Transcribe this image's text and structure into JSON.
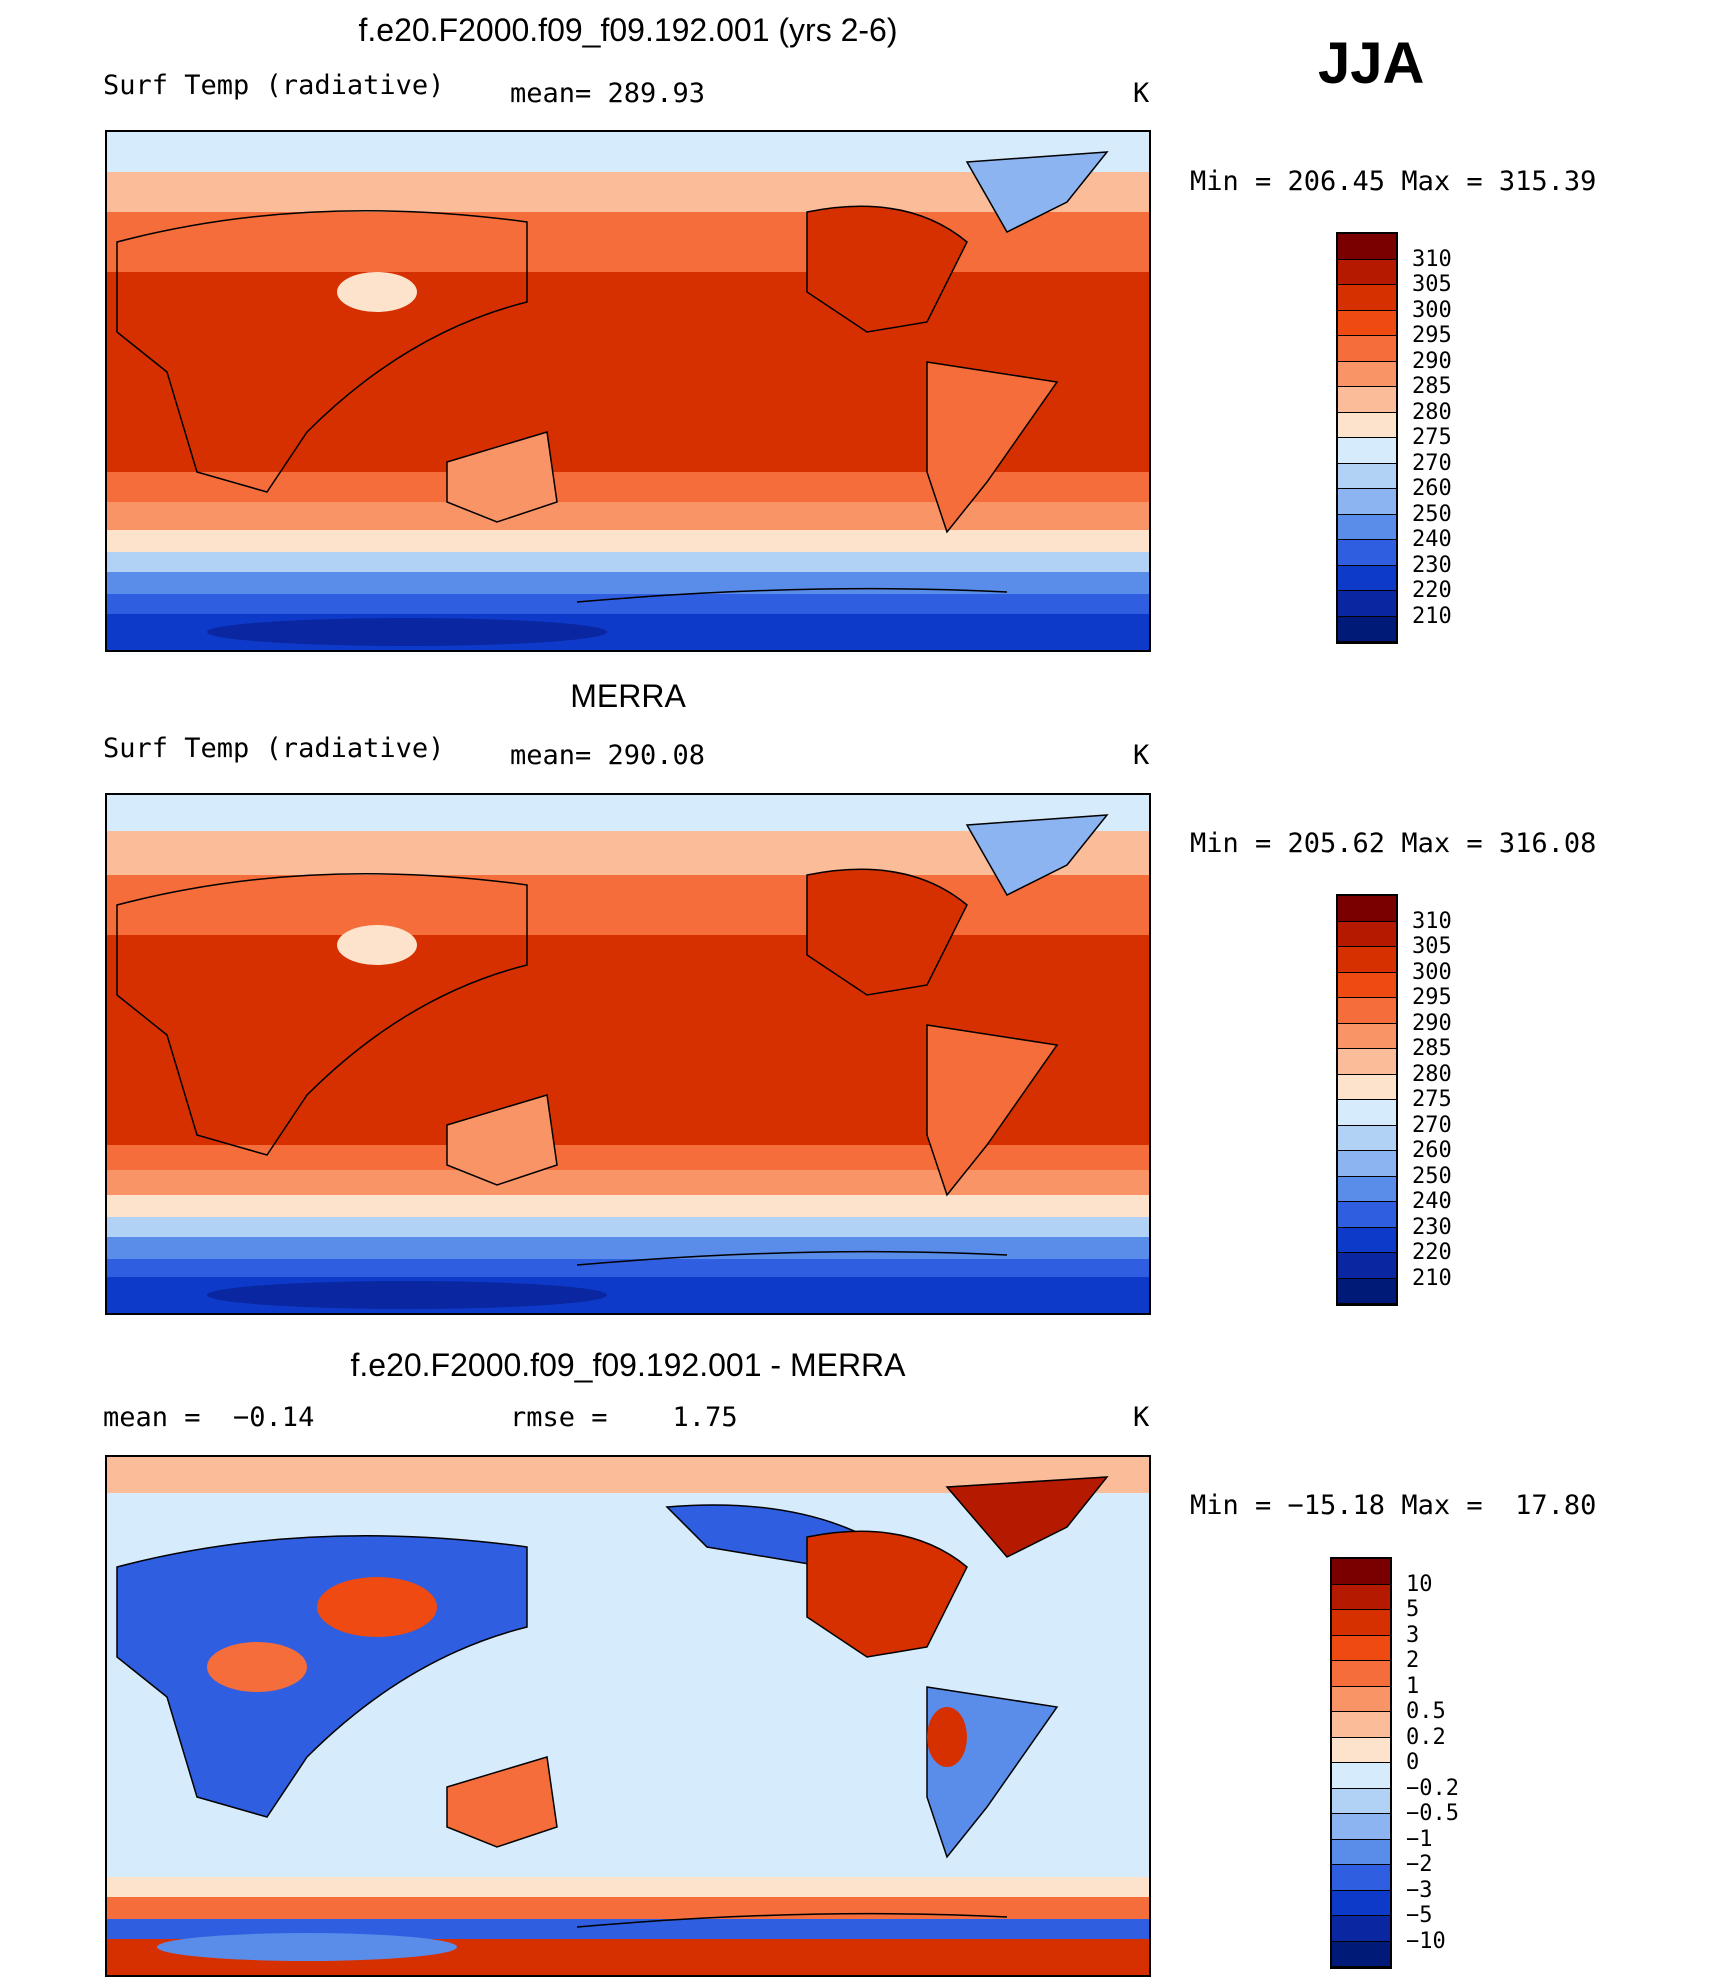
{
  "season": "JJA",
  "panels": [
    {
      "id": "model",
      "title": "f.e20.F2000.f09_f09.192.001 (yrs 2-6)",
      "left_label": "Surf Temp (radiative)",
      "mid_label": "mean= 289.93",
      "units": "K",
      "minmax": "Min = 206.45 Max = 315.39",
      "colorbar": {
        "labels": [
          "310",
          "305",
          "300",
          "295",
          "290",
          "285",
          "280",
          "275",
          "270",
          "260",
          "250",
          "240",
          "230",
          "220",
          "210"
        ],
        "colors": [
          "#7a0000",
          "#b51a00",
          "#d63000",
          "#ee4a12",
          "#f46d3b",
          "#f89466",
          "#fbbc99",
          "#fde2cc",
          "#d6ebfb",
          "#b2d2f5",
          "#8bb4f0",
          "#5a8cea",
          "#2f5fe0",
          "#0d3ac8",
          "#0a26a0",
          "#001a78"
        ]
      }
    },
    {
      "id": "obs",
      "title": "MERRA",
      "left_label": "Surf Temp (radiative)",
      "mid_label": "mean= 290.08",
      "units": "K",
      "minmax": "Min = 205.62 Max = 316.08",
      "colorbar": {
        "labels": [
          "310",
          "305",
          "300",
          "295",
          "290",
          "285",
          "280",
          "275",
          "270",
          "260",
          "250",
          "240",
          "230",
          "220",
          "210"
        ],
        "colors": [
          "#7a0000",
          "#b51a00",
          "#d63000",
          "#ee4a12",
          "#f46d3b",
          "#f89466",
          "#fbbc99",
          "#fde2cc",
          "#d6ebfb",
          "#b2d2f5",
          "#8bb4f0",
          "#5a8cea",
          "#2f5fe0",
          "#0d3ac8",
          "#0a26a0",
          "#001a78"
        ]
      }
    },
    {
      "id": "diff",
      "title": "f.e20.F2000.f09_f09.192.001 - MERRA",
      "left_label": "mean =  −0.14",
      "mid_label": "rmse =    1.75",
      "units": "K",
      "minmax": "Min = −15.18 Max =  17.80",
      "colorbar": {
        "labels": [
          "10",
          "5",
          "3",
          "2",
          "1",
          "0.5",
          "0.2",
          "0",
          "−0.2",
          "−0.5",
          "−1",
          "−2",
          "−3",
          "−5",
          "−10"
        ],
        "colors": [
          "#7a0000",
          "#b51a00",
          "#d63000",
          "#ee4a12",
          "#f46d3b",
          "#f89466",
          "#fbbc99",
          "#fde2cc",
          "#d6ebfb",
          "#b2d2f5",
          "#8bb4f0",
          "#5a8cea",
          "#2f5fe0",
          "#0d3ac8",
          "#0a26a0",
          "#001a78"
        ]
      }
    }
  ]
}
